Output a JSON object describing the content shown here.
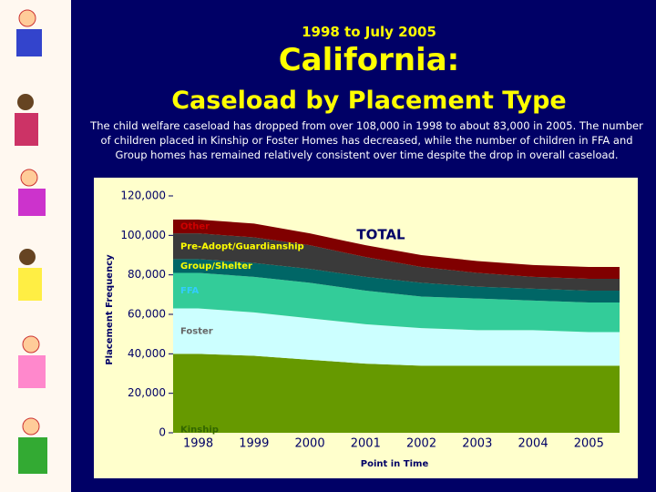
{
  "header": {
    "subtitle": "1998 to July 2005",
    "title": "California:",
    "heading": "Caseload by Placement Type",
    "description": "The child welfare caseload has dropped from over 108,000 in 1998 to about 83,000 in 2005. The number of children placed in Kinship or Foster Homes has decreased, while the number of children in FFA and Group homes has remained relatively consistent over time despite the drop in overall caseload."
  },
  "chart_data": {
    "type": "stacked-area",
    "x": [
      1998,
      1999,
      2000,
      2001,
      2002,
      2003,
      2004,
      2005
    ],
    "xlim": [
      1997.55,
      2005.55
    ],
    "xticks": [
      1998,
      1999,
      2000,
      2001,
      2002,
      2003,
      2004,
      2005
    ],
    "ylim": [
      0,
      120000
    ],
    "yticks": [
      0,
      {
        "value": 20000,
        "label": "20,000"
      },
      {
        "value": 40000,
        "label": "40,000"
      },
      {
        "value": 60000,
        "label": "60,000"
      },
      {
        "value": 80000,
        "label": "80,000"
      },
      {
        "value": 100000,
        "label": "100,000"
      },
      {
        "value": 120000,
        "label": "120,000"
      }
    ],
    "x_label": "Point in Time",
    "y_label": "Placement Frequency",
    "annotation": "TOTAL",
    "series": [
      {
        "name": "Kinship",
        "color": "#669900",
        "values": [
          40000,
          39000,
          37000,
          35000,
          34000,
          34000,
          34000,
          34000
        ]
      },
      {
        "name": "Foster",
        "color": "#ccffff",
        "values": [
          23000,
          22000,
          21000,
          20000,
          19000,
          18000,
          18000,
          17000
        ]
      },
      {
        "name": "FFA",
        "color": "#33cc99",
        "values": [
          18000,
          18000,
          18000,
          17000,
          16000,
          16000,
          15000,
          15000
        ]
      },
      {
        "name": "Group/Shelter",
        "color": "#006666",
        "values": [
          7000,
          7000,
          7000,
          7000,
          7000,
          6000,
          6000,
          6000
        ]
      },
      {
        "name": "Pre-Adopt/Guardianship",
        "color": "#3a3a3a",
        "values": [
          13000,
          13000,
          12000,
          10000,
          8000,
          7000,
          6000,
          6000
        ]
      },
      {
        "name": "Other",
        "color": "#800000",
        "values": [
          7000,
          7000,
          6000,
          6000,
          6000,
          6000,
          6000,
          6000
        ]
      }
    ]
  }
}
